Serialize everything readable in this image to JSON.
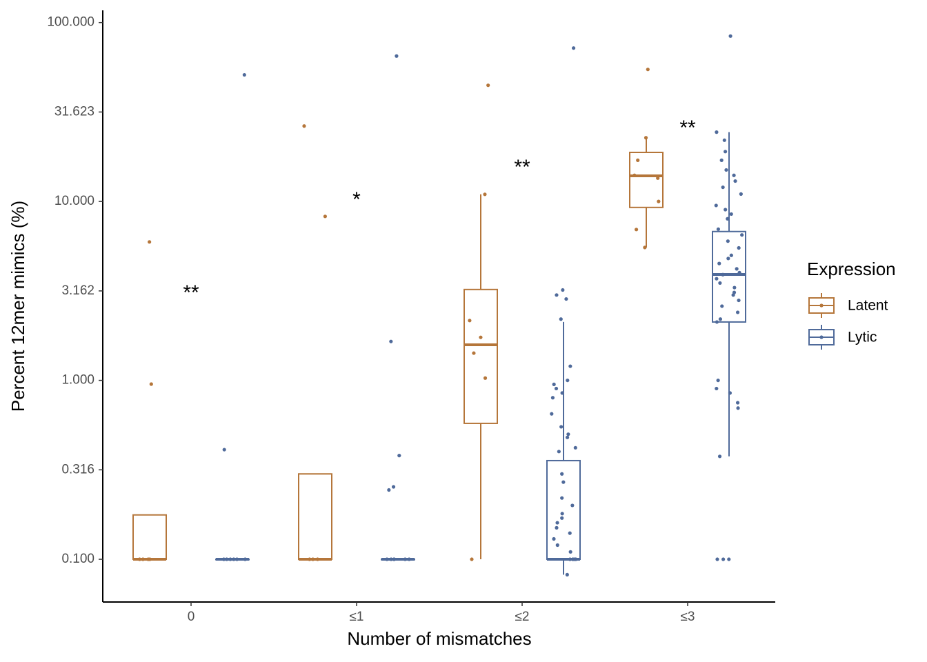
{
  "chart_data": {
    "type": "box",
    "x_label": "Number of mismatches",
    "y_label": "Percent 12mer mimics (%)",
    "yscale": "log",
    "ylim": [
      0.0577,
      117
    ],
    "yticks": [
      {
        "value": 0.1,
        "label": "0.100"
      },
      {
        "value": 0.31623,
        "label": "0.316"
      },
      {
        "value": 1,
        "label": "1.000"
      },
      {
        "value": 3.16228,
        "label": "3.162"
      },
      {
        "value": 10,
        "label": "10.000"
      },
      {
        "value": 31.62278,
        "label": "31.623"
      },
      {
        "value": 100,
        "label": "100.000"
      }
    ],
    "categories": [
      "0",
      "≤1",
      "≤2",
      "≤3"
    ],
    "significance": [
      "**",
      "*",
      "**",
      "**"
    ],
    "legend_title": "Expression",
    "series": [
      {
        "name": "Latent",
        "color": "#b5763a",
        "boxes": [
          {
            "min": 0.1,
            "q1": 0.1,
            "median": 0.1,
            "q3": 0.177,
            "max": 0.177
          },
          {
            "min": 0.1,
            "q1": 0.1,
            "median": 0.1,
            "q3": 0.3,
            "max": 0.3
          },
          {
            "min": 0.1,
            "q1": 0.575,
            "median": 1.58,
            "q3": 3.22,
            "max": 10.96
          },
          {
            "min": 5.53,
            "q1": 9.26,
            "median": 13.9,
            "q3": 18.8,
            "max": 22.7
          }
        ],
        "points": [
          [
            5.94,
            0.953,
            0.1,
            0.1,
            0.1,
            0.1
          ],
          [
            26.4,
            8.25,
            0.1,
            0.1,
            0.1
          ],
          [
            44.6,
            10.96,
            2.16,
            1.74,
            1.42,
            1.03,
            0.1
          ],
          [
            54.7,
            22.7,
            17,
            14,
            13.5,
            10,
            6.97,
            5.53
          ]
        ]
      },
      {
        "name": "Lytic",
        "color": "#4f6a9a",
        "boxes": [
          {
            "min": 0.1,
            "q1": 0.1,
            "median": 0.1,
            "q3": 0.1,
            "max": 0.1
          },
          {
            "min": 0.1,
            "q1": 0.1,
            "median": 0.1,
            "q3": 0.1,
            "max": 0.1
          },
          {
            "min": 0.082,
            "q1": 0.1,
            "median": 0.1,
            "q3": 0.356,
            "max": 2.12
          },
          {
            "min": 0.376,
            "q1": 2.12,
            "median": 3.91,
            "q3": 6.79,
            "max": 24.4
          }
        ],
        "points": [
          [
            51,
            0.41,
            0.1,
            0.1,
            0.1,
            0.1,
            0.1,
            0.1
          ],
          [
            65,
            1.65,
            0.38,
            0.254,
            0.244,
            0.1,
            0.1,
            0.1,
            0.1,
            0.1,
            0.1
          ],
          [
            72,
            3.2,
            3.0,
            2.85,
            2.2,
            1.2,
            1.0,
            0.95,
            0.9,
            0.85,
            0.8,
            0.65,
            0.55,
            0.5,
            0.48,
            0.42,
            0.4,
            0.3,
            0.27,
            0.22,
            0.2,
            0.18,
            0.17,
            0.16,
            0.15,
            0.14,
            0.13,
            0.12,
            0.11,
            0.1,
            0.1,
            0.1,
            0.1,
            0.1,
            0.082
          ],
          [
            84,
            24.4,
            22,
            19,
            17,
            15,
            14,
            13,
            12,
            11,
            9.5,
            9,
            8.5,
            8,
            7,
            6.5,
            6,
            5.5,
            5,
            4.8,
            4.5,
            4.2,
            4,
            3.9,
            3.7,
            3.5,
            3.3,
            3.1,
            3,
            2.8,
            2.6,
            2.4,
            2.2,
            2.12,
            1.0,
            0.9,
            0.85,
            0.75,
            0.7,
            0.376,
            0.1,
            0.1,
            0.1
          ]
        ]
      }
    ]
  }
}
